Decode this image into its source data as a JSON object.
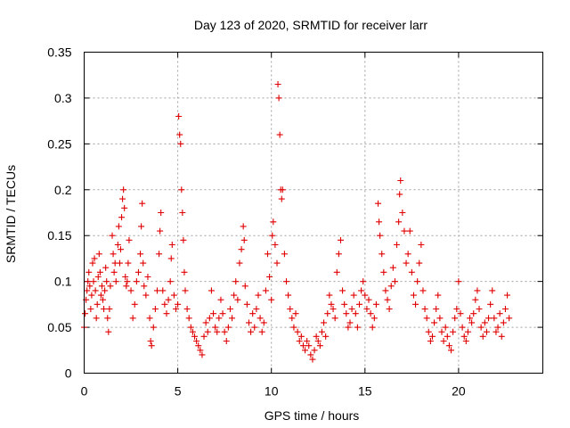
{
  "chart_data": {
    "type": "scatter",
    "title": "Day 123 of 2020, SRMTID for receiver larr",
    "xlabel": "GPS time / hours",
    "ylabel": "SRMTID / TECUs",
    "xlim": [
      0,
      24.5
    ],
    "ylim": [
      0,
      0.35
    ],
    "xticks": [
      0,
      5,
      10,
      15,
      20
    ],
    "yticks": [
      0,
      0.05,
      0.1,
      0.15,
      0.2,
      0.25,
      0.3,
      0.35
    ],
    "ytick_labels": [
      "0",
      "0.05",
      "0.1",
      "0.15",
      "0.2",
      "0.25",
      "0.3",
      "0.35"
    ],
    "grid": true,
    "marker": "plus",
    "series": [
      {
        "name": "SRMTID",
        "color": "#e00000",
        "points": [
          [
            0.0,
            0.05
          ],
          [
            0.05,
            0.065
          ],
          [
            0.1,
            0.08
          ],
          [
            0.15,
            0.09
          ],
          [
            0.2,
            0.1
          ],
          [
            0.25,
            0.11
          ],
          [
            0.3,
            0.095
          ],
          [
            0.35,
            0.07
          ],
          [
            0.4,
            0.085
          ],
          [
            0.45,
            0.12
          ],
          [
            0.5,
            0.1
          ],
          [
            0.55,
            0.125
          ],
          [
            0.6,
            0.09
          ],
          [
            0.65,
            0.06
          ],
          [
            0.7,
            0.075
          ],
          [
            0.75,
            0.105
          ],
          [
            0.8,
            0.13
          ],
          [
            0.85,
            0.11
          ],
          [
            0.9,
            0.085
          ],
          [
            0.95,
            0.095
          ],
          [
            1.0,
            0.08
          ],
          [
            1.05,
            0.07
          ],
          [
            1.1,
            0.09
          ],
          [
            1.15,
            0.115
          ],
          [
            1.2,
            0.1
          ],
          [
            1.25,
            0.06
          ],
          [
            1.3,
            0.045
          ],
          [
            1.35,
            0.07
          ],
          [
            1.4,
            0.095
          ],
          [
            1.5,
            0.15
          ],
          [
            1.55,
            0.13
          ],
          [
            1.6,
            0.11
          ],
          [
            1.65,
            0.12
          ],
          [
            1.7,
            0.1
          ],
          [
            1.8,
            0.14
          ],
          [
            1.85,
            0.16
          ],
          [
            1.9,
            0.12
          ],
          [
            1.95,
            0.135
          ],
          [
            2.0,
            0.17
          ],
          [
            2.05,
            0.19
          ],
          [
            2.1,
            0.2
          ],
          [
            2.15,
            0.18
          ],
          [
            2.2,
            0.105
          ],
          [
            2.25,
            0.095
          ],
          [
            2.3,
            0.1
          ],
          [
            2.35,
            0.12
          ],
          [
            2.4,
            0.145
          ],
          [
            2.5,
            0.09
          ],
          [
            2.6,
            0.06
          ],
          [
            2.7,
            0.075
          ],
          [
            2.8,
            0.1
          ],
          [
            2.9,
            0.11
          ],
          [
            3.0,
            0.13
          ],
          [
            3.05,
            0.16
          ],
          [
            3.1,
            0.185
          ],
          [
            3.15,
            0.12
          ],
          [
            3.2,
            0.095
          ],
          [
            3.3,
            0.085
          ],
          [
            3.4,
            0.105
          ],
          [
            3.5,
            0.06
          ],
          [
            3.55,
            0.035
          ],
          [
            3.6,
            0.03
          ],
          [
            3.7,
            0.05
          ],
          [
            3.8,
            0.07
          ],
          [
            3.9,
            0.09
          ],
          [
            4.0,
            0.13
          ],
          [
            4.05,
            0.155
          ],
          [
            4.1,
            0.175
          ],
          [
            4.2,
            0.09
          ],
          [
            4.3,
            0.075
          ],
          [
            4.4,
            0.065
          ],
          [
            4.5,
            0.08
          ],
          [
            4.6,
            0.1
          ],
          [
            4.65,
            0.125
          ],
          [
            4.7,
            0.14
          ],
          [
            4.8,
            0.085
          ],
          [
            4.9,
            0.07
          ],
          [
            5.0,
            0.075
          ],
          [
            5.05,
            0.28
          ],
          [
            5.1,
            0.26
          ],
          [
            5.15,
            0.25
          ],
          [
            5.2,
            0.2
          ],
          [
            5.25,
            0.175
          ],
          [
            5.3,
            0.145
          ],
          [
            5.35,
            0.11
          ],
          [
            5.4,
            0.09
          ],
          [
            5.5,
            0.07
          ],
          [
            5.6,
            0.06
          ],
          [
            5.7,
            0.05
          ],
          [
            5.8,
            0.045
          ],
          [
            5.9,
            0.04
          ],
          [
            6.0,
            0.035
          ],
          [
            6.1,
            0.03
          ],
          [
            6.2,
            0.025
          ],
          [
            6.3,
            0.02
          ],
          [
            6.4,
            0.04
          ],
          [
            6.5,
            0.055
          ],
          [
            6.6,
            0.045
          ],
          [
            6.7,
            0.06
          ],
          [
            6.8,
            0.09
          ],
          [
            6.9,
            0.065
          ],
          [
            7.0,
            0.05
          ],
          [
            7.1,
            0.045
          ],
          [
            7.2,
            0.06
          ],
          [
            7.3,
            0.08
          ],
          [
            7.4,
            0.065
          ],
          [
            7.5,
            0.045
          ],
          [
            7.6,
            0.035
          ],
          [
            7.7,
            0.05
          ],
          [
            7.8,
            0.07
          ],
          [
            7.9,
            0.06
          ],
          [
            8.0,
            0.085
          ],
          [
            8.1,
            0.1
          ],
          [
            8.2,
            0.08
          ],
          [
            8.3,
            0.12
          ],
          [
            8.4,
            0.135
          ],
          [
            8.5,
            0.16
          ],
          [
            8.55,
            0.145
          ],
          [
            8.6,
            0.095
          ],
          [
            8.7,
            0.075
          ],
          [
            8.8,
            0.055
          ],
          [
            8.9,
            0.045
          ],
          [
            9.0,
            0.065
          ],
          [
            9.1,
            0.05
          ],
          [
            9.2,
            0.07
          ],
          [
            9.3,
            0.085
          ],
          [
            9.4,
            0.06
          ],
          [
            9.5,
            0.045
          ],
          [
            9.6,
            0.055
          ],
          [
            9.7,
            0.09
          ],
          [
            9.8,
            0.13
          ],
          [
            9.9,
            0.105
          ],
          [
            10.0,
            0.08
          ],
          [
            10.05,
            0.15
          ],
          [
            10.1,
            0.165
          ],
          [
            10.2,
            0.14
          ],
          [
            10.3,
            0.12
          ],
          [
            10.35,
            0.315
          ],
          [
            10.4,
            0.3
          ],
          [
            10.45,
            0.26
          ],
          [
            10.5,
            0.2
          ],
          [
            10.55,
            0.19
          ],
          [
            10.6,
            0.2
          ],
          [
            10.7,
            0.13
          ],
          [
            10.8,
            0.1
          ],
          [
            10.9,
            0.085
          ],
          [
            11.0,
            0.07
          ],
          [
            11.1,
            0.06
          ],
          [
            11.2,
            0.05
          ],
          [
            11.3,
            0.065
          ],
          [
            11.4,
            0.045
          ],
          [
            11.5,
            0.035
          ],
          [
            11.6,
            0.04
          ],
          [
            11.7,
            0.03
          ],
          [
            11.8,
            0.025
          ],
          [
            11.9,
            0.035
          ],
          [
            12.0,
            0.03
          ],
          [
            12.1,
            0.02
          ],
          [
            12.2,
            0.015
          ],
          [
            12.3,
            0.025
          ],
          [
            12.4,
            0.04
          ],
          [
            12.5,
            0.035
          ],
          [
            12.6,
            0.03
          ],
          [
            12.7,
            0.045
          ],
          [
            12.8,
            0.055
          ],
          [
            12.9,
            0.04
          ],
          [
            13.0,
            0.065
          ],
          [
            13.1,
            0.085
          ],
          [
            13.2,
            0.075
          ],
          [
            13.3,
            0.07
          ],
          [
            13.4,
            0.06
          ],
          [
            13.5,
            0.11
          ],
          [
            13.6,
            0.13
          ],
          [
            13.7,
            0.145
          ],
          [
            13.8,
            0.09
          ],
          [
            13.9,
            0.075
          ],
          [
            14.0,
            0.065
          ],
          [
            14.1,
            0.05
          ],
          [
            14.2,
            0.055
          ],
          [
            14.3,
            0.07
          ],
          [
            14.4,
            0.085
          ],
          [
            14.5,
            0.065
          ],
          [
            14.6,
            0.05
          ],
          [
            14.7,
            0.075
          ],
          [
            14.8,
            0.09
          ],
          [
            14.9,
            0.1
          ],
          [
            15.0,
            0.085
          ],
          [
            15.1,
            0.07
          ],
          [
            15.2,
            0.08
          ],
          [
            15.3,
            0.065
          ],
          [
            15.4,
            0.05
          ],
          [
            15.5,
            0.06
          ],
          [
            15.6,
            0.075
          ],
          [
            15.7,
            0.185
          ],
          [
            15.75,
            0.165
          ],
          [
            15.8,
            0.15
          ],
          [
            15.9,
            0.13
          ],
          [
            16.0,
            0.11
          ],
          [
            16.1,
            0.09
          ],
          [
            16.2,
            0.08
          ],
          [
            16.3,
            0.07
          ],
          [
            16.4,
            0.095
          ],
          [
            16.5,
            0.115
          ],
          [
            16.6,
            0.1
          ],
          [
            16.7,
            0.14
          ],
          [
            16.8,
            0.165
          ],
          [
            16.85,
            0.195
          ],
          [
            16.9,
            0.21
          ],
          [
            17.0,
            0.175
          ],
          [
            17.1,
            0.155
          ],
          [
            17.2,
            0.12
          ],
          [
            17.3,
            0.13
          ],
          [
            17.4,
            0.155
          ],
          [
            17.5,
            0.11
          ],
          [
            17.6,
            0.085
          ],
          [
            17.7,
            0.075
          ],
          [
            17.8,
            0.1
          ],
          [
            17.9,
            0.12
          ],
          [
            18.0,
            0.14
          ],
          [
            18.1,
            0.09
          ],
          [
            18.2,
            0.07
          ],
          [
            18.3,
            0.06
          ],
          [
            18.4,
            0.045
          ],
          [
            18.5,
            0.035
          ],
          [
            18.6,
            0.04
          ],
          [
            18.7,
            0.055
          ],
          [
            18.8,
            0.07
          ],
          [
            18.9,
            0.085
          ],
          [
            19.0,
            0.06
          ],
          [
            19.1,
            0.045
          ],
          [
            19.2,
            0.035
          ],
          [
            19.3,
            0.05
          ],
          [
            19.4,
            0.04
          ],
          [
            19.5,
            0.03
          ],
          [
            19.6,
            0.025
          ],
          [
            19.7,
            0.045
          ],
          [
            19.8,
            0.06
          ],
          [
            19.9,
            0.07
          ],
          [
            20.0,
            0.1
          ],
          [
            20.1,
            0.065
          ],
          [
            20.2,
            0.05
          ],
          [
            20.3,
            0.04
          ],
          [
            20.4,
            0.035
          ],
          [
            20.5,
            0.045
          ],
          [
            20.6,
            0.06
          ],
          [
            20.7,
            0.055
          ],
          [
            20.8,
            0.065
          ],
          [
            20.9,
            0.08
          ],
          [
            21.0,
            0.09
          ],
          [
            21.1,
            0.07
          ],
          [
            21.2,
            0.05
          ],
          [
            21.3,
            0.04
          ],
          [
            21.4,
            0.055
          ],
          [
            21.5,
            0.045
          ],
          [
            21.6,
            0.06
          ],
          [
            21.7,
            0.075
          ],
          [
            21.8,
            0.09
          ],
          [
            21.9,
            0.06
          ],
          [
            22.0,
            0.045
          ],
          [
            22.1,
            0.05
          ],
          [
            22.2,
            0.065
          ],
          [
            22.3,
            0.04
          ],
          [
            22.4,
            0.055
          ],
          [
            22.5,
            0.07
          ],
          [
            22.6,
            0.085
          ],
          [
            22.7,
            0.06
          ]
        ]
      }
    ]
  }
}
